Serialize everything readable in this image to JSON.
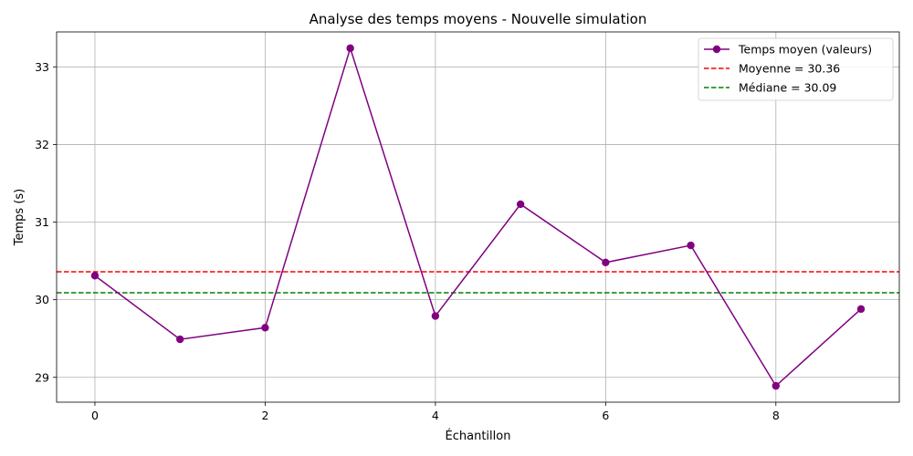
{
  "chart_data": {
    "type": "line",
    "title": "Analyse des temps moyens - Nouvelle simulation",
    "xlabel": "Échantillon",
    "ylabel": "Temps (s)",
    "xlim": [
      -0.45,
      9.45
    ],
    "ylim": [
      28.68,
      33.45
    ],
    "xticks": [
      0,
      2,
      4,
      6,
      8
    ],
    "yticks": [
      29,
      30,
      31,
      32,
      33
    ],
    "grid": true,
    "legend_position": "top-right",
    "series": [
      {
        "name": "Temps moyen (valeurs)",
        "color": "#800080",
        "marker": "circle",
        "x": [
          0,
          1,
          2,
          3,
          4,
          5,
          6,
          7,
          8,
          9
        ],
        "y": [
          30.31,
          29.49,
          29.64,
          33.24,
          29.79,
          31.23,
          30.48,
          30.7,
          28.89,
          29.88
        ]
      }
    ],
    "reference_lines": [
      {
        "name": "Moyenne = 30.36",
        "value": 30.36,
        "color": "#ff0000",
        "style": "dashed"
      },
      {
        "name": "Médiane = 30.09",
        "value": 30.09,
        "color": "#008000",
        "style": "dashed"
      }
    ]
  }
}
